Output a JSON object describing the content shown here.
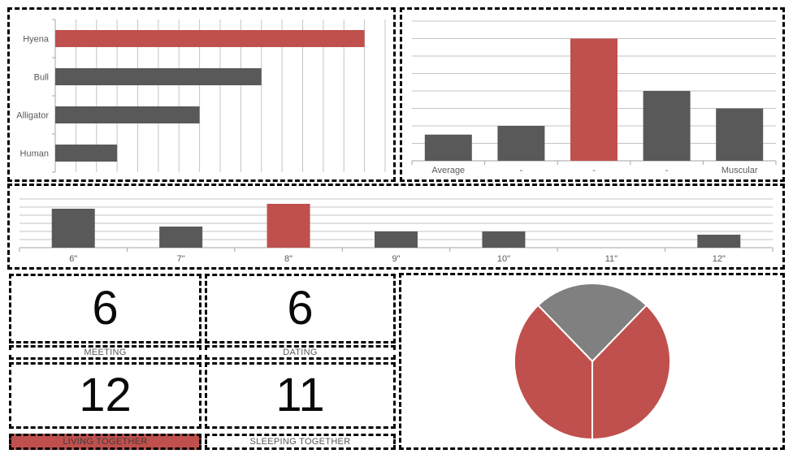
{
  "colors": {
    "accent_red": "#C0504D",
    "bar_gray": "#595959",
    "pie_gray": "#808080",
    "grid_gray": "#c3c3c3",
    "axis_gray": "#a6a6a6",
    "label_gray": "#595959",
    "border_black": "#000000",
    "background": "#ffffff"
  },
  "stats": [
    {
      "value": "6",
      "label": "MEETING",
      "highlight": false
    },
    {
      "value": "6",
      "label": "DATING",
      "highlight": false
    },
    {
      "value": "12",
      "label": "LIVING TOGETHER",
      "highlight": true
    },
    {
      "value": "11",
      "label": "SLEEPING TOGETHER",
      "highlight": false
    }
  ],
  "chart_data": [
    {
      "id": "species_bar",
      "type": "bar",
      "orientation": "horizontal",
      "title": "",
      "categories": [
        "Hyena",
        "Bull",
        "Alligator",
        "Human"
      ],
      "values": [
        15,
        10,
        7,
        3
      ],
      "highlight_index": 0,
      "xlim": [
        0,
        16
      ],
      "gridline_step": 1,
      "grid": "vertical",
      "value_axis_tick_labels": "none",
      "bar_color": "#595959",
      "highlight_color": "#C0504D"
    },
    {
      "id": "build_bar",
      "type": "bar",
      "orientation": "vertical",
      "title": "",
      "categories": [
        "Average",
        "-",
        "-",
        "-",
        "Muscular"
      ],
      "values": [
        1.5,
        2,
        7,
        4,
        3
      ],
      "highlight_index": 2,
      "ylim": [
        0,
        9
      ],
      "gridline_step": 1,
      "gridline_max": 8,
      "grid": "horizontal",
      "value_axis_tick_labels": "none",
      "bar_color": "#595959",
      "highlight_color": "#C0504D"
    },
    {
      "id": "length_bar",
      "type": "bar",
      "orientation": "vertical",
      "title": "",
      "categories": [
        "6\"",
        "7\"",
        "8\"",
        "9\"",
        "10\"",
        "11\"",
        "12\""
      ],
      "values": [
        4.8,
        2.6,
        5.4,
        2,
        2,
        0,
        1.6
      ],
      "highlight_index": 2,
      "ylim": [
        0,
        6.5
      ],
      "gridline_step": 1,
      "gridline_max": 6,
      "grid": "horizontal",
      "value_axis_tick_labels": "none",
      "bar_color": "#595959",
      "highlight_color": "#C0504D"
    },
    {
      "id": "relationship_pie",
      "type": "pie",
      "title": "",
      "start_angle_deg": -44,
      "separator_color": "#ffffff",
      "slices": [
        {
          "name": "gray-slice-top",
          "angle_deg": 88,
          "fraction": 0.244,
          "color": "#808080"
        },
        {
          "name": "red-slice-right",
          "angle_deg": 136,
          "fraction": 0.378,
          "color": "#C0504D"
        },
        {
          "name": "red-slice-left",
          "angle_deg": 136,
          "fraction": 0.378,
          "color": "#C0504D"
        }
      ]
    }
  ]
}
